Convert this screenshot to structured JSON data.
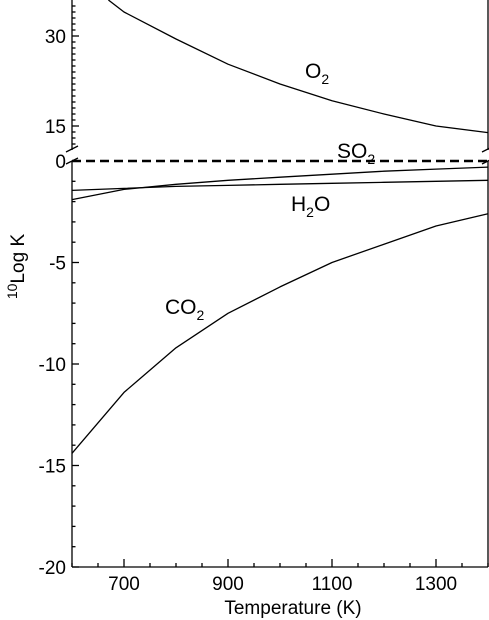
{
  "chart_data": {
    "type": "line",
    "xlabel": "Temperature (K)",
    "ylabel_super": "10",
    "ylabel_main": "Log K",
    "xlim": [
      600,
      1400
    ],
    "y_break": true,
    "ylim_upper": [
      11,
      36
    ],
    "ylim_lower": [
      -20,
      0
    ],
    "x_ticks": [
      700,
      900,
      1100,
      1300
    ],
    "y_ticks_upper": [
      15,
      30
    ],
    "y_ticks_lower": [
      0,
      -5,
      -10,
      -15,
      -20
    ],
    "series": [
      {
        "label_main": "O",
        "label_sub": "2",
        "x": [
          670,
          700,
          800,
          900,
          1000,
          1100,
          1200,
          1300,
          1400
        ],
        "y": [
          36.0,
          34.0,
          29.5,
          25.3,
          22.0,
          19.2,
          17.0,
          15.0,
          13.9
        ]
      },
      {
        "label_main": "SO",
        "label_sub": "2",
        "x": [
          600,
          700,
          800,
          900,
          1000,
          1100,
          1200,
          1300,
          1400
        ],
        "y": [
          -1.9,
          -1.4,
          -1.15,
          -0.95,
          -0.8,
          -0.65,
          -0.5,
          -0.4,
          -0.3
        ]
      },
      {
        "label_main": "H",
        "label_sub": "2",
        "label_tail": "O",
        "x": [
          600,
          700,
          800,
          900,
          1000,
          1100,
          1200,
          1300,
          1400
        ],
        "y": [
          -1.45,
          -1.35,
          -1.25,
          -1.2,
          -1.15,
          -1.1,
          -1.05,
          -1.0,
          -0.95
        ]
      },
      {
        "label_main": "CO",
        "label_sub": "2",
        "x": [
          600,
          700,
          800,
          900,
          1000,
          1100,
          1200,
          1300,
          1400
        ],
        "y": [
          -14.4,
          -11.4,
          -9.2,
          -7.5,
          -6.2,
          -5.0,
          -4.1,
          -3.2,
          -2.6
        ]
      }
    ],
    "reference_line": {
      "y": 0,
      "style": "dashed"
    }
  }
}
